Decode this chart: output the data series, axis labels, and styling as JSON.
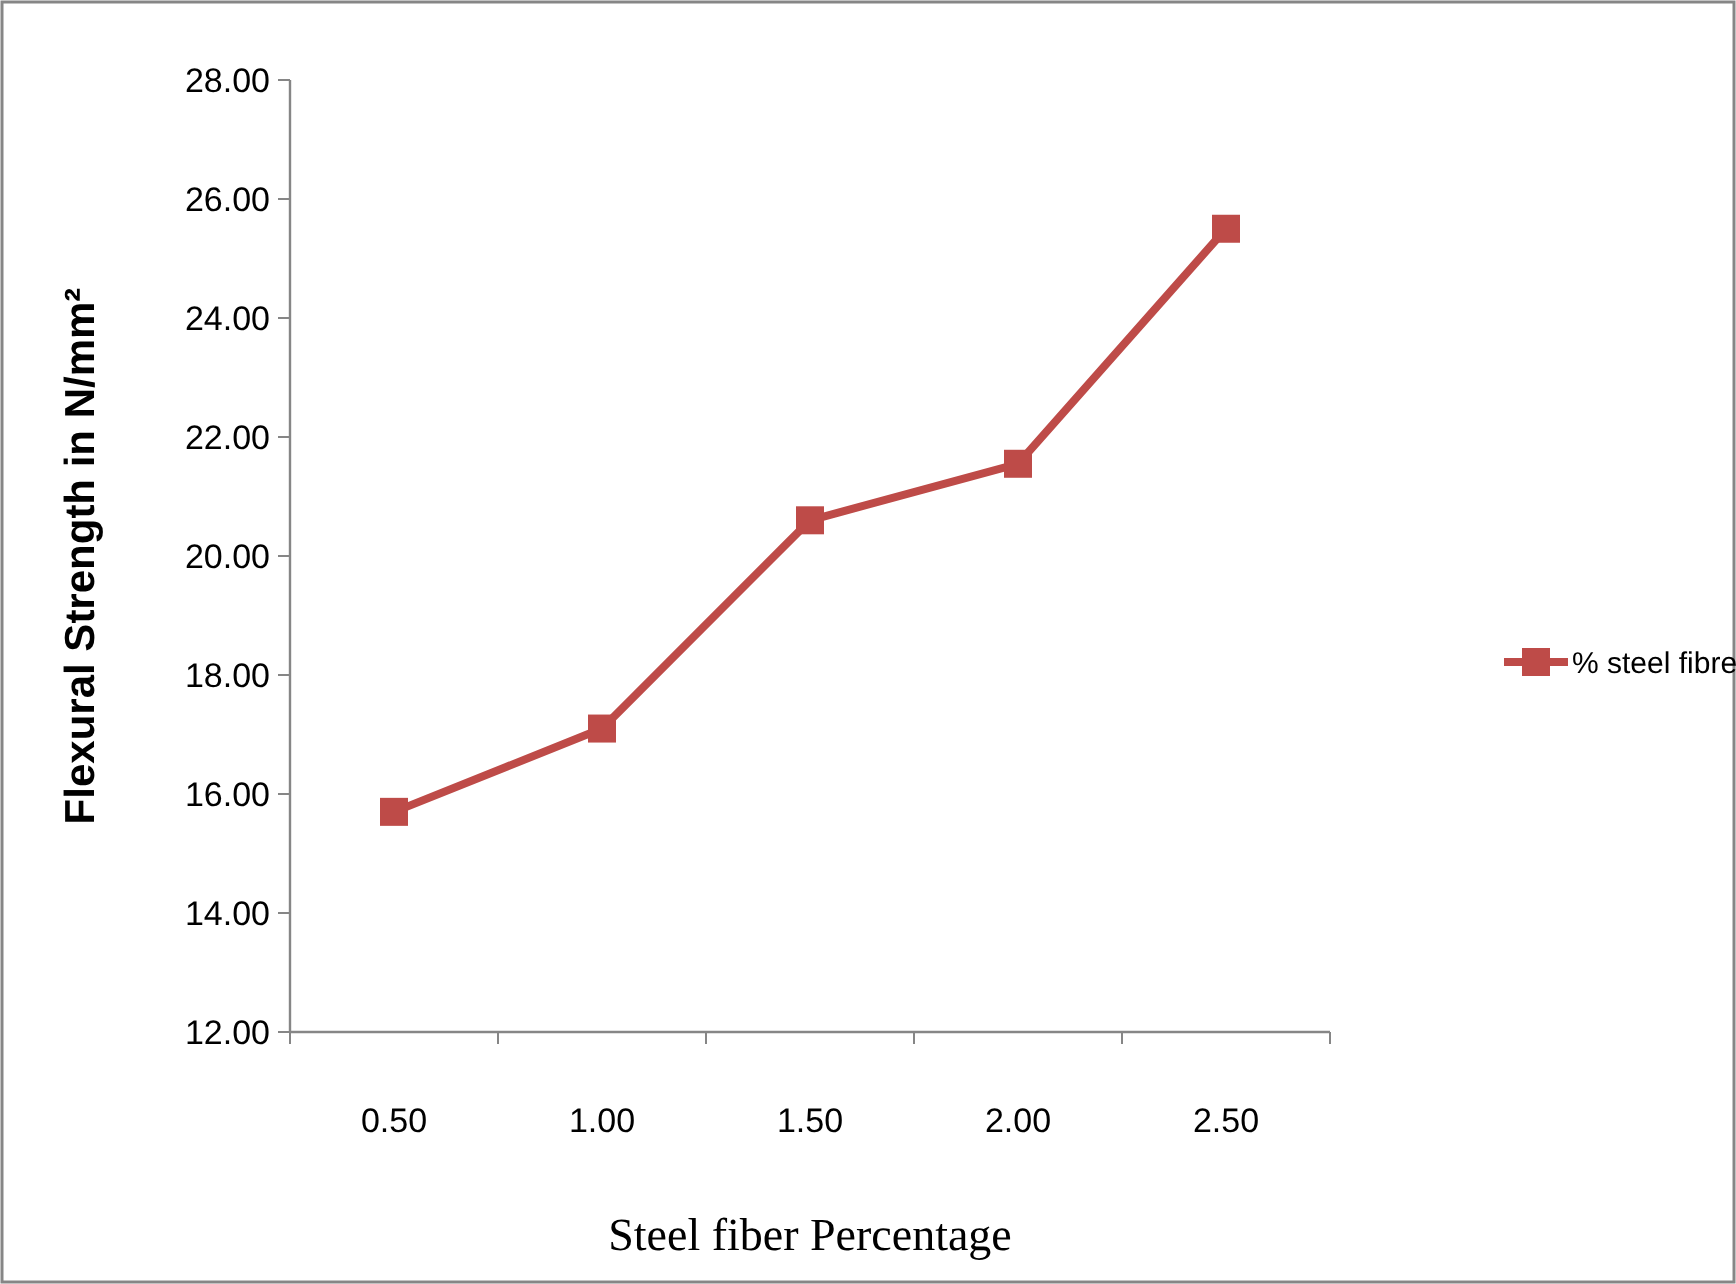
{
  "chart_data": {
    "type": "line",
    "xlabel": "Steel fiber Percentage",
    "ylabel": "Flexural Strength in N/mm²",
    "categories": [
      "0.50",
      "1.00",
      "1.50",
      "2.00",
      "2.50"
    ],
    "series": [
      {
        "name": "% steel fibre",
        "color": "#be4b48",
        "values": [
          15.7,
          17.1,
          20.6,
          21.55,
          25.5
        ]
      }
    ],
    "ylim": [
      12,
      28
    ],
    "yticks": [
      {
        "value": 12,
        "label": "12.00"
      },
      {
        "value": 14,
        "label": "14.00"
      },
      {
        "value": 16,
        "label": "16.00"
      },
      {
        "value": 18,
        "label": "18.00"
      },
      {
        "value": 20,
        "label": "20.00"
      },
      {
        "value": 22,
        "label": "22.00"
      },
      {
        "value": 24,
        "label": "24.00"
      },
      {
        "value": 26,
        "label": "26.00"
      },
      {
        "value": 28,
        "label": "28.00"
      }
    ],
    "grid": false,
    "legend": "right",
    "marker": "square",
    "line_style": "solid"
  }
}
